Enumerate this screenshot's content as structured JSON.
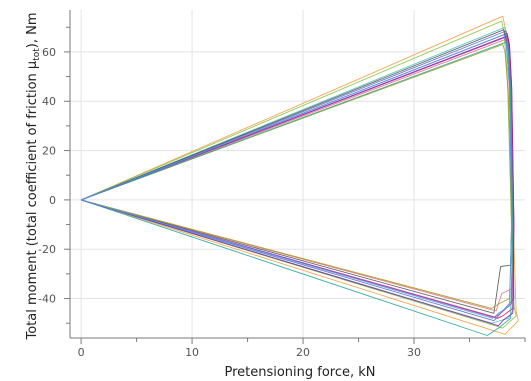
{
  "chart_data": {
    "type": "line",
    "xlabel": "Pretensioning force, kN",
    "ylabel_prefix": "Total moment (total coefficient of friction µ",
    "ylabel_sub": "tot",
    "ylabel_suffix": "), Nm",
    "xlim": [
      -1,
      40
    ],
    "ylim": [
      -56,
      77
    ],
    "x_ticks": [
      0,
      10,
      20,
      30
    ],
    "y_ticks": [
      -40,
      -20,
      0,
      20,
      40,
      60
    ],
    "x_tick_labels": [
      "0",
      "10",
      "20",
      "30"
    ],
    "y_tick_labels": [
      "-40",
      "-20",
      "0",
      "20",
      "40",
      "60"
    ],
    "grid": true,
    "legend": "none",
    "series": [
      {
        "color": "#f0a040",
        "x": [
          0,
          38.0,
          38.2,
          38.5,
          38.8,
          39.2,
          39.4,
          38.2,
          0
        ],
        "y": [
          0,
          74.5,
          70.0,
          55.0,
          10.0,
          -45.0,
          -49.0,
          -54.5,
          0
        ]
      },
      {
        "color": "#8bc34a",
        "x": [
          0,
          37.9,
          38.1,
          38.4,
          38.7,
          39.0,
          39.2,
          38.0,
          0
        ],
        "y": [
          0,
          72.5,
          68.0,
          52.0,
          5.0,
          -43.0,
          -47.0,
          -52.0,
          0
        ]
      },
      {
        "color": "#4fc3c3",
        "x": [
          0,
          38.2,
          38.4,
          38.6,
          38.8,
          39.0,
          38.5,
          37.0,
          0
        ],
        "y": [
          0,
          70.0,
          65.0,
          50.0,
          0.0,
          -44.0,
          -48.0,
          -50.0,
          0
        ]
      },
      {
        "color": "#5c6bc0",
        "x": [
          0,
          38.3,
          38.5,
          38.7,
          38.9,
          39.0,
          38.0,
          37.2,
          0
        ],
        "y": [
          0,
          68.5,
          64.0,
          48.0,
          -5.0,
          -40.0,
          -45.0,
          -49.0,
          0
        ]
      },
      {
        "color": "#c2185b",
        "x": [
          0,
          38.4,
          38.6,
          38.8,
          39.0,
          38.9,
          38.0,
          37.5,
          0
        ],
        "y": [
          0,
          67.5,
          63.0,
          45.0,
          -10.0,
          -44.0,
          -47.0,
          -48.0,
          0
        ]
      },
      {
        "color": "#ab47bc",
        "x": [
          0,
          38.3,
          38.5,
          38.7,
          38.9,
          38.8,
          37.8,
          37.3,
          0
        ],
        "y": [
          0,
          66.0,
          62.0,
          44.0,
          -8.0,
          -42.0,
          -46.0,
          -47.5,
          0
        ]
      },
      {
        "color": "#555555",
        "x": [
          0,
          38.1,
          38.3,
          38.6,
          38.8,
          38.7,
          37.8,
          37.2,
          0
        ],
        "y": [
          0,
          69.0,
          64.5,
          47.0,
          -6.0,
          -26.5,
          -27.0,
          -46.0,
          0
        ]
      },
      {
        "color": "#e57373",
        "x": [
          0,
          38.2,
          38.4,
          38.6,
          38.9,
          38.8,
          37.9,
          37.4,
          0
        ],
        "y": [
          0,
          65.0,
          61.0,
          43.0,
          -12.0,
          -36.0,
          -38.0,
          -45.0,
          0
        ]
      },
      {
        "color": "#9e9d24",
        "x": [
          0,
          38.0,
          38.2,
          38.5,
          38.8,
          38.6,
          37.7,
          37.0,
          0
        ],
        "y": [
          0,
          63.0,
          60.0,
          42.0,
          -15.0,
          -40.0,
          -42.0,
          -44.0,
          0
        ]
      },
      {
        "color": "#26a69a",
        "x": [
          0,
          38.3,
          38.5,
          38.7,
          38.9,
          38.7,
          37.6,
          36.6,
          0
        ],
        "y": [
          0,
          64.0,
          60.5,
          44.0,
          -12.0,
          -48.0,
          -52.0,
          -55.0,
          0
        ]
      },
      {
        "color": "#8e24aa",
        "x": [
          0,
          38.4,
          38.6,
          38.8,
          39.0,
          38.9,
          38.1,
          37.6,
          0
        ],
        "y": [
          0,
          66.5,
          62.5,
          46.0,
          -9.0,
          -46.0,
          -48.5,
          -51.0,
          0
        ]
      },
      {
        "color": "#42a5f5",
        "x": [
          0,
          38.1,
          38.3,
          38.6,
          38.8,
          38.6,
          37.6,
          37.1,
          0
        ],
        "y": [
          0,
          67.0,
          63.5,
          46.0,
          -9.0,
          -43.0,
          -46.0,
          -48.0,
          0
        ]
      }
    ]
  }
}
